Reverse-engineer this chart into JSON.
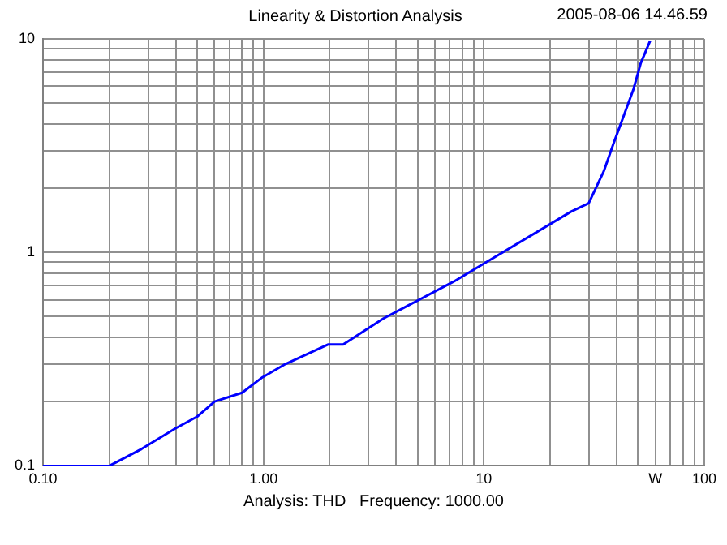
{
  "chart_data": {
    "type": "line",
    "title": "Linearity & Distortion Analysis",
    "annotations": [
      "2005-08-06 14.46.59",
      "Analysis: THD   Frequency: 1000.00"
    ],
    "log": "xy",
    "grid": true,
    "legend": false,
    "marker": "none",
    "xlim": [
      0.1,
      100
    ],
    "ylim": [
      0.1,
      10
    ],
    "xticks": [
      {
        "value": 0.1,
        "label": "0.10"
      },
      {
        "value": 0.2,
        "label": null
      },
      {
        "value": 0.3,
        "label": null
      },
      {
        "value": 0.4,
        "label": null
      },
      {
        "value": 0.5,
        "label": null
      },
      {
        "value": 0.6,
        "label": null
      },
      {
        "value": 0.7,
        "label": null
      },
      {
        "value": 0.8,
        "label": null
      },
      {
        "value": 0.9,
        "label": null
      },
      {
        "value": 1,
        "label": "1.00"
      },
      {
        "value": 2,
        "label": null
      },
      {
        "value": 3,
        "label": null
      },
      {
        "value": 4,
        "label": null
      },
      {
        "value": 5,
        "label": null
      },
      {
        "value": 6,
        "label": null
      },
      {
        "value": 7,
        "label": null
      },
      {
        "value": 8,
        "label": null
      },
      {
        "value": 9,
        "label": null
      },
      10,
      {
        "value": 20,
        "label": null
      },
      {
        "value": 30,
        "label": null
      },
      {
        "value": 40,
        "label": null
      },
      {
        "value": 50,
        "label": null
      },
      {
        "value": 60,
        "label": "W"
      },
      {
        "value": 70,
        "label": null
      },
      {
        "value": 80,
        "label": null
      },
      {
        "value": 90,
        "label": null
      },
      100
    ],
    "yticks": [
      0.1,
      {
        "value": 0.2,
        "label": null
      },
      {
        "value": 0.3,
        "label": null
      },
      {
        "value": 0.4,
        "label": null
      },
      {
        "value": 0.5,
        "label": null
      },
      {
        "value": 0.6,
        "label": null
      },
      {
        "value": 0.7,
        "label": null
      },
      {
        "value": 0.8,
        "label": null
      },
      {
        "value": 0.9,
        "label": null
      },
      1,
      {
        "value": 2,
        "label": null
      },
      {
        "value": 3,
        "label": null
      },
      {
        "value": 4,
        "label": null
      },
      {
        "value": 5,
        "label": null
      },
      {
        "value": 6,
        "label": null
      },
      {
        "value": 7,
        "label": null
      },
      {
        "value": 8,
        "label": null
      },
      {
        "value": 9,
        "label": null
      },
      10
    ],
    "series": [
      {
        "color": "#0000ff",
        "x": [
          0.1,
          0.2,
          0.28,
          0.4,
          0.5,
          0.6,
          0.8,
          0.99,
          1.26,
          1.96,
          2.3,
          3.5,
          7.3,
          9.9,
          24.8,
          29.9,
          35,
          38.6,
          47.7,
          51.5,
          56.8
        ],
        "values": [
          0.1,
          0.1,
          0.12,
          0.15,
          0.17,
          0.2,
          0.22,
          0.26,
          0.3,
          0.37,
          0.37,
          0.49,
          0.73,
          0.88,
          1.55,
          1.7,
          2.4,
          3.2,
          5.8,
          7.7,
          9.8
        ]
      }
    ]
  }
}
